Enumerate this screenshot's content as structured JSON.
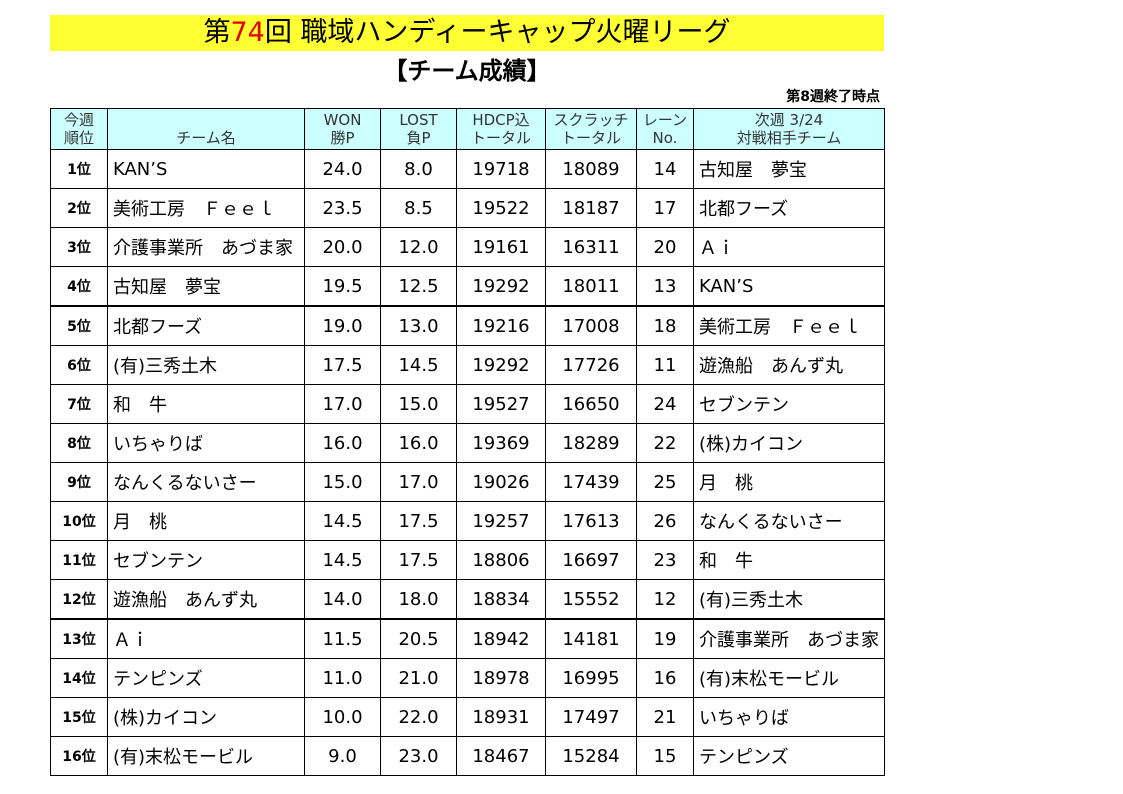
{
  "header": {
    "title_prefix": "第",
    "title_number": "74",
    "title_suffix": "回 職域ハンディーキャップ火曜リーグ",
    "subtitle": "【チーム成績】",
    "note": "第8週終了時点"
  },
  "table": {
    "columns": [
      [
        "今週",
        "順位"
      ],
      [
        "",
        "チーム名"
      ],
      [
        "WON",
        "勝P"
      ],
      [
        "LOST",
        "負P"
      ],
      [
        "HDCP込",
        "トータル"
      ],
      [
        "スクラッチ",
        "トータル"
      ],
      [
        "レーン",
        "No."
      ],
      [
        "次週 3/24",
        "対戦相手チーム"
      ]
    ],
    "rows": [
      [
        "1位",
        "KAN’S",
        "24.0",
        "8.0",
        "19718",
        "18089",
        "14",
        "古知屋　夢宝"
      ],
      [
        "2位",
        "美術工房　Ｆｅｅｌ",
        "23.5",
        "8.5",
        "19522",
        "18187",
        "17",
        "北都フーズ"
      ],
      [
        "3位",
        "介護事業所　あづま家",
        "20.0",
        "12.0",
        "19161",
        "16311",
        "20",
        "Ａｉ"
      ],
      [
        "4位",
        "古知屋　夢宝",
        "19.5",
        "12.5",
        "19292",
        "18011",
        "13",
        "KAN’S"
      ],
      [
        "5位",
        "北都フーズ",
        "19.0",
        "13.0",
        "19216",
        "17008",
        "18",
        "美術工房　Ｆｅｅｌ"
      ],
      [
        "6位",
        "(有)三秀土木",
        "17.5",
        "14.5",
        "19292",
        "17726",
        "11",
        "遊漁船　あんず丸"
      ],
      [
        "7位",
        "和　牛",
        "17.0",
        "15.0",
        "19527",
        "16650",
        "24",
        "セブンテン"
      ],
      [
        "8位",
        "いちゃりば",
        "16.0",
        "16.0",
        "19369",
        "18289",
        "22",
        "(株)カイコン"
      ],
      [
        "9位",
        "なんくるないさー",
        "15.0",
        "17.0",
        "19026",
        "17439",
        "25",
        "月　桃"
      ],
      [
        "10位",
        "月　桃",
        "14.5",
        "17.5",
        "19257",
        "17613",
        "26",
        "なんくるないさー"
      ],
      [
        "11位",
        "セブンテン",
        "14.5",
        "17.5",
        "18806",
        "16697",
        "23",
        "和　牛"
      ],
      [
        "12位",
        "遊漁船　あんず丸",
        "14.0",
        "18.0",
        "18834",
        "15552",
        "12",
        "(有)三秀土木"
      ],
      [
        "13位",
        "Ａｉ",
        "11.5",
        "20.5",
        "18942",
        "14181",
        "19",
        "介護事業所　あづま家"
      ],
      [
        "14位",
        "テンピンズ",
        "11.0",
        "21.0",
        "18978",
        "16995",
        "16",
        "(有)末松モービル"
      ],
      [
        "15位",
        "(株)カイコン",
        "10.0",
        "22.0",
        "18931",
        "17497",
        "21",
        "いちゃりば"
      ],
      [
        "16位",
        "(有)末松モービル",
        "9.0",
        "23.0",
        "18467",
        "15284",
        "15",
        "テンピンズ"
      ]
    ]
  }
}
